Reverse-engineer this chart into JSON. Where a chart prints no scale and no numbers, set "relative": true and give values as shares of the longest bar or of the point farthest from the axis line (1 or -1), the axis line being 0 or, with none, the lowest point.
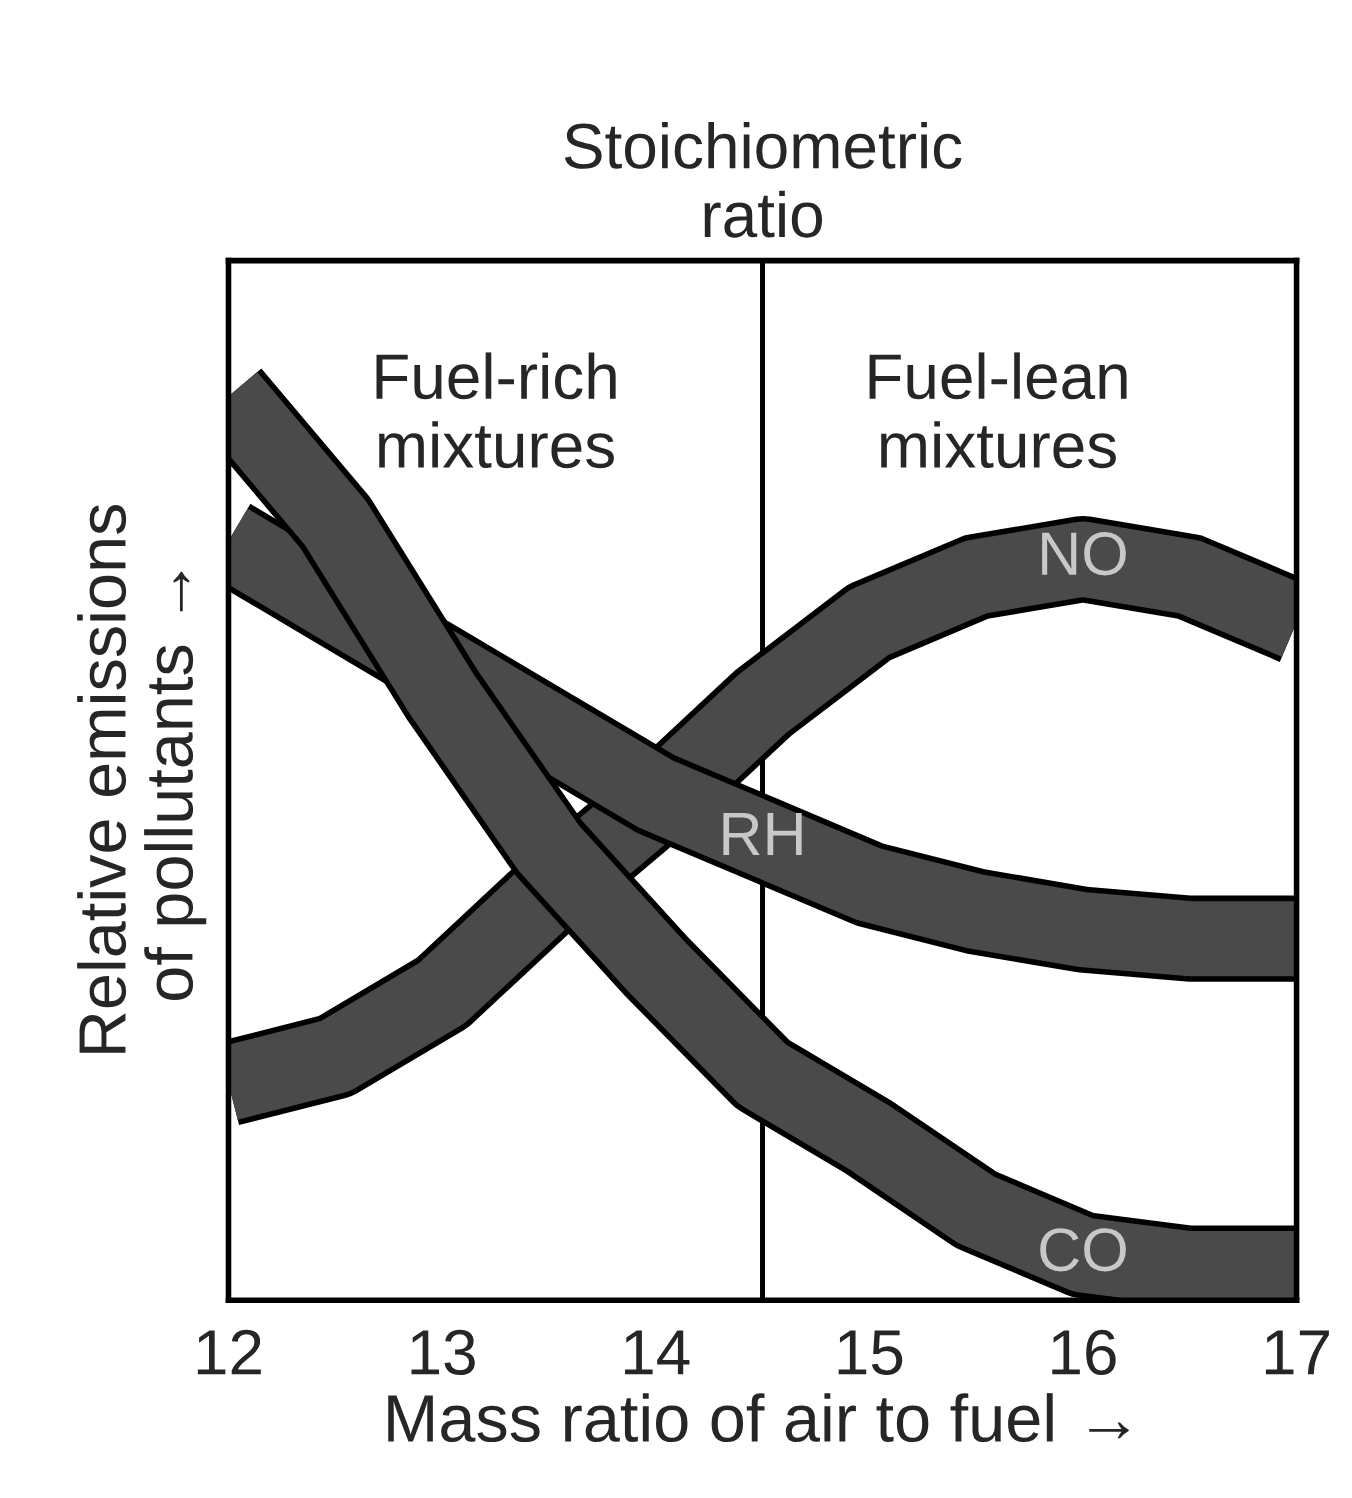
{
  "chart_data": {
    "type": "line",
    "relative": true,
    "xlabel": "Mass ratio of air to fuel →",
    "ylabel": "Relative emissions\nof pollutants →",
    "x": [
      12,
      12.5,
      13,
      13.5,
      14,
      14.5,
      15,
      15.5,
      16,
      16.5,
      17
    ],
    "xlim": [
      12,
      17
    ],
    "xticks": [
      12,
      13,
      14,
      15,
      16,
      17
    ],
    "grid": false,
    "legend": false,
    "series": [
      {
        "name": "NO",
        "color": "#4a4a4a",
        "values": [
          0.24,
          0.27,
          0.34,
          0.45,
          0.55,
          0.66,
          0.75,
          0.8,
          0.82,
          0.8,
          0.75
        ]
      },
      {
        "name": "RH",
        "color": "#4a4a4a",
        "values": [
          0.84,
          0.77,
          0.7,
          0.63,
          0.56,
          0.51,
          0.46,
          0.43,
          0.41,
          0.4,
          0.4
        ]
      },
      {
        "name": "CO",
        "color": "#4a4a4a",
        "values": [
          1,
          0.86,
          0.67,
          0.5,
          0.37,
          0.25,
          0.18,
          0.1,
          0.05,
          0.035,
          0.035
        ]
      }
    ],
    "ref_lines": [
      {
        "axis": "x",
        "value": 14.5,
        "label": "Stoichiometric\nratio",
        "color": "#000000"
      }
    ],
    "annotations": [
      "Fuel-rich\nmixtures",
      "Fuel-lean\nmixtures"
    ]
  }
}
